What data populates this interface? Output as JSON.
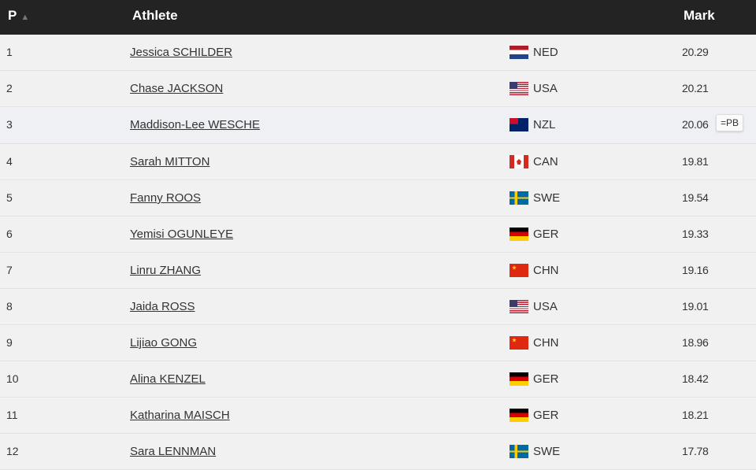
{
  "header": {
    "position": "P",
    "athlete": "Athlete",
    "mark": "Mark"
  },
  "rows": [
    {
      "pos": "1",
      "name": "Jessica SCHILDER",
      "country": "NED",
      "mark": "20.29"
    },
    {
      "pos": "2",
      "name": "Chase JACKSON",
      "country": "USA",
      "mark": "20.21"
    },
    {
      "pos": "3",
      "name": "Maddison-Lee WESCHE",
      "country": "NZL",
      "mark": "20.06",
      "badge": "=PB"
    },
    {
      "pos": "4",
      "name": "Sarah MITTON",
      "country": "CAN",
      "mark": "19.81"
    },
    {
      "pos": "5",
      "name": "Fanny ROOS",
      "country": "SWE",
      "mark": "19.54"
    },
    {
      "pos": "6",
      "name": "Yemisi OGUNLEYE",
      "country": "GER",
      "mark": "19.33"
    },
    {
      "pos": "7",
      "name": "Linru ZHANG",
      "country": "CHN",
      "mark": "19.16"
    },
    {
      "pos": "8",
      "name": "Jaida ROSS",
      "country": "USA",
      "mark": "19.01"
    },
    {
      "pos": "9",
      "name": "Lijiao GONG",
      "country": "CHN",
      "mark": "18.96"
    },
    {
      "pos": "10",
      "name": "Alina KENZEL",
      "country": "GER",
      "mark": "18.42"
    },
    {
      "pos": "11",
      "name": "Katharina MAISCH",
      "country": "GER",
      "mark": "18.21"
    },
    {
      "pos": "12",
      "name": "Sara LENNMAN",
      "country": "SWE",
      "mark": "17.78"
    }
  ]
}
